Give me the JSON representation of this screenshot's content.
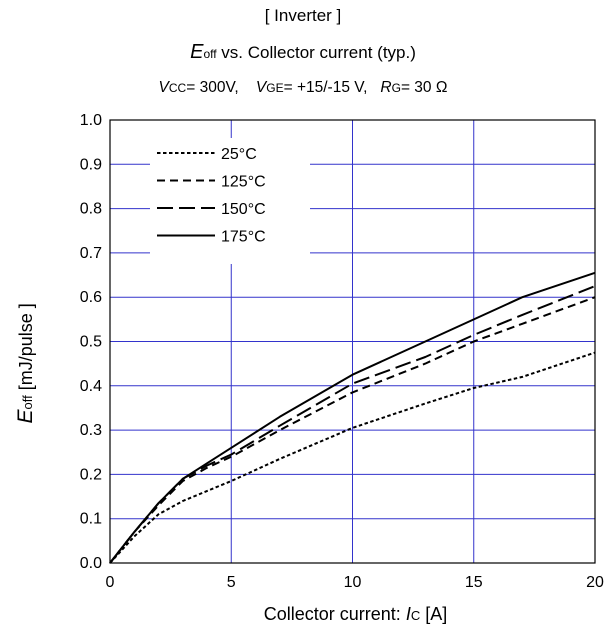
{
  "header": {
    "line1": "[ Inverter ]",
    "line2_sym": "E",
    "line2_sub": "off",
    "line2_rest": " vs.  Collector current  (typ.)",
    "cond_vcc_sym": "V",
    "cond_vcc_sub": "CC",
    "cond_vcc_val": "= 300V,",
    "cond_vge_sym": "V",
    "cond_vge_sub": "GE",
    "cond_vge_val": "= +15/-15 V,",
    "cond_rg_sym": "R",
    "cond_rg_sub": "G",
    "cond_rg_val": "= 30 Ω"
  },
  "axes": {
    "ylabel_sym": "E",
    "ylabel_sub": "off",
    "ylabel_rest": " [mJ/pulse ]",
    "xlabel_text": "Collector current: ",
    "xlabel_sym": "I",
    "xlabel_sub": "C",
    "xlabel_unit": " [A]"
  },
  "chart_data": {
    "type": "line",
    "title": "Eoff vs. Collector current (typ.)",
    "xlabel": "Collector current: IC [A]",
    "ylabel": "Eoff [mJ/pulse ]",
    "xlim": [
      0,
      20
    ],
    "ylim": [
      0,
      1.0
    ],
    "x_ticks": [
      "0",
      "5",
      "10",
      "15",
      "20"
    ],
    "y_ticks": [
      "0.0",
      "0.1",
      "0.2",
      "0.3",
      "0.4",
      "0.5",
      "0.6",
      "0.7",
      "0.8",
      "0.9",
      "1.0"
    ],
    "grid": true,
    "legend_position": "top-left",
    "series": [
      {
        "name": "25°C",
        "style": "dotted",
        "x": [
          0,
          1,
          2,
          3,
          5,
          7,
          10,
          13,
          15,
          17,
          20
        ],
        "y": [
          0,
          0.06,
          0.11,
          0.14,
          0.185,
          0.235,
          0.305,
          0.36,
          0.395,
          0.42,
          0.475
        ]
      },
      {
        "name": "125°C",
        "style": "dashed",
        "x": [
          0,
          1,
          2,
          3,
          4,
          5,
          7,
          10,
          13,
          15,
          17,
          20
        ],
        "y": [
          0,
          0.07,
          0.13,
          0.185,
          0.215,
          0.24,
          0.3,
          0.385,
          0.45,
          0.5,
          0.54,
          0.6
        ]
      },
      {
        "name": "150°C",
        "style": "long-dash",
        "x": [
          0,
          1,
          2,
          3,
          4,
          5,
          7,
          10,
          13,
          15,
          17,
          20
        ],
        "y": [
          0,
          0.07,
          0.135,
          0.19,
          0.22,
          0.245,
          0.31,
          0.405,
          0.465,
          0.515,
          0.56,
          0.625
        ]
      },
      {
        "name": "175°C",
        "style": "solid",
        "x": [
          0,
          1,
          2,
          3,
          4,
          5,
          7,
          10,
          13,
          15,
          17,
          20
        ],
        "y": [
          0,
          0.07,
          0.135,
          0.19,
          0.225,
          0.26,
          0.33,
          0.425,
          0.5,
          0.55,
          0.6,
          0.655
        ]
      }
    ],
    "line_color": "#000000",
    "grid_color": "#3333cc"
  }
}
